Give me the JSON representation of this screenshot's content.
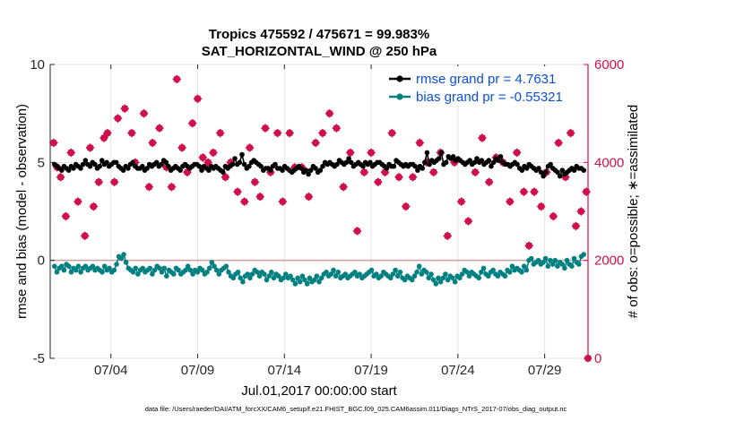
{
  "chart_data": {
    "type": "line",
    "title": "Tropics 475592 / 475671 = 99.983%",
    "subtitle": "SAT_HORIZONTAL_WIND @ 250 hPa",
    "xlabel": "Jul.01,2017 00:00:00 start",
    "ylabel_left": "rmse and bias (model - observation)",
    "ylabel_right": "# of obs: o=possible; ∗=assimilated",
    "x_range_days": [
      0.5,
      31.5
    ],
    "x_tick_days": [
      4,
      9,
      14,
      19,
      24,
      29
    ],
    "x_tick_labels": [
      "07/04",
      "07/09",
      "07/14",
      "07/19",
      "07/24",
      "07/29"
    ],
    "ylim_left": [
      -5,
      10
    ],
    "ylim_right": [
      0,
      6000
    ],
    "y_ticks_left": [
      -5,
      0,
      5,
      10
    ],
    "y_ticks_right": [
      0,
      2000,
      4000,
      6000
    ],
    "grid": true,
    "legend_placement": "top-right",
    "colors": {
      "rmse": "#000000",
      "bias": "#008080",
      "obs": "#d0104c",
      "right_axis": "#d0104c",
      "zero_line": "#c9a0a0",
      "legend_text": "#0b4fd9"
    },
    "series": [
      {
        "name": "rmse grand pr = 4.7631",
        "axis": "left",
        "color": "#000000",
        "values": [
          4.9,
          4.8,
          4.7,
          4.6,
          4.8,
          4.7,
          4.6,
          4.8,
          4.7,
          4.9,
          4.8,
          4.7,
          4.9,
          5.1,
          4.9,
          4.8,
          5.0,
          4.9,
          4.7,
          4.8,
          5.1,
          4.9,
          5.0,
          4.8,
          4.9,
          5.0,
          5.0,
          4.8,
          4.7,
          4.6,
          4.8,
          4.7,
          4.9,
          5.0,
          4.8,
          4.7,
          4.7,
          4.8,
          4.6,
          4.7,
          4.9,
          4.8,
          4.9,
          5.0,
          4.8,
          4.9,
          5.1,
          5.0,
          4.8,
          4.6,
          4.7,
          4.8,
          4.7,
          4.6,
          4.8,
          4.9,
          4.8,
          4.7,
          4.8,
          4.9,
          4.9,
          4.8,
          4.6,
          4.8,
          4.7,
          4.6,
          4.8,
          4.7,
          4.8,
          4.7,
          4.6,
          4.5,
          4.8,
          4.7,
          4.8,
          4.9,
          5.2,
          4.9,
          5.0,
          5.4,
          4.9,
          4.7,
          4.8,
          5.0,
          5.1,
          5.0,
          4.9,
          4.8,
          4.6,
          4.7,
          4.7,
          4.6,
          4.8,
          4.9,
          4.7,
          4.7,
          4.6,
          4.8,
          4.7,
          4.6,
          4.5,
          4.6,
          4.7,
          4.8,
          4.7,
          4.5,
          4.6,
          4.4,
          4.6,
          4.8,
          4.7,
          4.5,
          4.6,
          4.8,
          5.0,
          4.9,
          5.0,
          4.9,
          4.8,
          4.9,
          5.1,
          5.0,
          4.9,
          5.0,
          5.2,
          5.0,
          4.8,
          4.9,
          5.0,
          4.9,
          4.8,
          5.0,
          4.9,
          5.0,
          4.8,
          4.9,
          5.0,
          5.0,
          4.9,
          4.8,
          4.7,
          4.9,
          4.8,
          4.8,
          5.1,
          5.0,
          4.9,
          4.8,
          4.9,
          4.8,
          4.9,
          4.9,
          4.8,
          4.6,
          4.8,
          4.7,
          5.0,
          5.5,
          4.9,
          5.1,
          5.0,
          5.1,
          5.2,
          5.5,
          4.9,
          5.0,
          5.3,
          5.2,
          5.3,
          5.1,
          5.2,
          5.1,
          5.0,
          4.9,
          5.0,
          5.1,
          4.9,
          5.0,
          5.2,
          5.0,
          5.1,
          4.9,
          5.0,
          5.1,
          4.8,
          5.0,
          5.2,
          5.1,
          5.3,
          5.0,
          4.9,
          4.9,
          4.8,
          4.9,
          5.0,
          4.9,
          4.7,
          4.6,
          4.8,
          4.7,
          4.9,
          4.8,
          4.7,
          4.6,
          4.7,
          4.5,
          4.3,
          4.5,
          4.8,
          4.9,
          4.7,
          4.6,
          4.5,
          4.3,
          4.6,
          4.4,
          4.5,
          4.6,
          4.7,
          4.6,
          4.8,
          4.7,
          4.7,
          4.6
        ]
      },
      {
        "name": "bias grand pr = -0.55321",
        "axis": "left",
        "color": "#008080",
        "values": [
          -0.3,
          -0.6,
          -0.4,
          -0.3,
          -0.5,
          -0.2,
          -0.3,
          -0.6,
          -0.4,
          -0.5,
          -0.3,
          -0.6,
          -0.4,
          -0.3,
          -0.5,
          -0.4,
          -0.3,
          -0.5,
          -0.4,
          -0.5,
          -0.6,
          -0.3,
          -0.5,
          -0.4,
          -0.6,
          -0.5,
          -0.2,
          0.2,
          0.1,
          0.3,
          -0.1,
          -0.4,
          -0.5,
          -0.6,
          -0.4,
          -0.7,
          -0.5,
          -0.4,
          -0.6,
          -0.5,
          -0.4,
          -0.7,
          -0.5,
          -0.3,
          -0.4,
          -0.6,
          -0.4,
          -0.8,
          -0.5,
          -0.6,
          -0.7,
          -0.4,
          -0.5,
          -0.7,
          -0.6,
          -0.5,
          -0.3,
          -0.5,
          -0.7,
          -0.5,
          -0.6,
          -0.4,
          -0.5,
          -0.7,
          -0.6,
          -0.4,
          -0.1,
          -0.3,
          -0.5,
          -0.7,
          -0.5,
          -0.4,
          -0.3,
          -0.6,
          -0.8,
          -0.9,
          -0.7,
          -0.6,
          -0.9,
          -1.1,
          -0.8,
          -0.7,
          -0.9,
          -0.7,
          -0.5,
          -0.6,
          -0.8,
          -0.6,
          -0.7,
          -1.0,
          -0.8,
          -0.6,
          -0.9,
          -0.7,
          -0.8,
          -1.0,
          -0.9,
          -0.7,
          -0.9,
          -0.8,
          -1.0,
          -1.2,
          -0.9,
          -1.1,
          -0.8,
          -1.0,
          -1.2,
          -0.9,
          -1.1,
          -1.0,
          -0.8,
          -1.1,
          -0.9,
          -0.7,
          -0.6,
          -0.8,
          -0.7,
          -0.5,
          -0.8,
          -0.6,
          -0.9,
          -0.8,
          -0.7,
          -0.9,
          -0.8,
          -0.7,
          -0.6,
          -0.8,
          -0.7,
          -0.9,
          -0.8,
          -0.7,
          -0.6,
          -0.5,
          -0.8,
          -0.7,
          -0.9,
          -0.8,
          -0.6,
          -0.7,
          -0.8,
          -0.9,
          -0.7,
          -0.5,
          -0.8,
          -0.6,
          -0.9,
          -1.0,
          -0.8,
          -0.9,
          -1.0,
          -0.8,
          -0.6,
          -0.3,
          -0.7,
          -0.5,
          -0.6,
          -0.9,
          -0.7,
          -1.0,
          -1.2,
          -0.9,
          -1.1,
          -0.9,
          -0.7,
          -1.0,
          -0.8,
          -0.9,
          -1.1,
          -0.8,
          -0.9,
          -0.7,
          -0.5,
          -0.6,
          -0.8,
          -0.6,
          -0.7,
          -0.8,
          -0.9,
          -0.6,
          -0.4,
          -0.7,
          -0.8,
          -0.6,
          -0.5,
          -0.7,
          -0.8,
          -0.6,
          -0.7,
          -0.8,
          -0.5,
          -0.6,
          -0.3,
          -0.5,
          -0.4,
          -0.5,
          -0.6,
          -0.3,
          -0.5,
          0.0,
          0.1,
          -0.2,
          -0.1,
          0.0,
          -0.2,
          -0.1,
          0.1,
          -0.3,
          0.0,
          -0.2,
          0.0,
          -0.3,
          -0.1,
          -0.2,
          -0.4,
          0.0,
          -0.2,
          -0.3,
          0.1,
          -0.1,
          -0.2,
          0.2,
          0.3
        ]
      },
      {
        "name": "obs",
        "axis": "right",
        "color": "#d0104c",
        "x": [
          0.7,
          0.9,
          1.1,
          1.4,
          1.7,
          2.1,
          2.5,
          2.8,
          3.0,
          3.3,
          3.6,
          3.8,
          4.2,
          4.4,
          4.8,
          5.2,
          5.4,
          5.9,
          6.2,
          6.4,
          6.8,
          7.2,
          7.5,
          7.8,
          8.1,
          8.4,
          8.7,
          9.0,
          9.3,
          9.6,
          9.9,
          10.3,
          10.6,
          10.9,
          11.3,
          11.7,
          12.0,
          12.3,
          12.6,
          12.9,
          13.2,
          13.6,
          13.9,
          14.3,
          14.6,
          15.0,
          15.4,
          15.8,
          16.2,
          16.6,
          17.0,
          17.4,
          17.8,
          18.2,
          18.6,
          19.0,
          19.4,
          19.8,
          20.2,
          20.6,
          21.0,
          21.4,
          21.8,
          22.2,
          22.6,
          23.0,
          23.4,
          23.8,
          24.2,
          24.6,
          25.0,
          25.4,
          25.8,
          26.2,
          26.6,
          27.0,
          27.4,
          27.8,
          28.1,
          28.4,
          28.8,
          29.1,
          29.5,
          29.8,
          30.2,
          30.5,
          30.8,
          31.1,
          31.4
        ],
        "values": [
          4400,
          3900,
          3700,
          2900,
          4200,
          3200,
          2500,
          4300,
          3100,
          3600,
          4500,
          4600,
          3600,
          4900,
          5100,
          4600,
          4000,
          5000,
          3500,
          4400,
          4700,
          3900,
          3500,
          5700,
          4300,
          3800,
          4800,
          5300,
          4100,
          4000,
          4200,
          4600,
          3700,
          4000,
          3400,
          3200,
          4300,
          3600,
          3300,
          4700,
          3800,
          4600,
          3200,
          4600,
          3900,
          3900,
          3300,
          4400,
          4600,
          5000,
          4700,
          3500,
          4200,
          2600,
          3800,
          4200,
          3600,
          3800,
          4600,
          3700,
          3100,
          3700,
          4400,
          4000,
          3800,
          4200,
          2500,
          4000,
          3200,
          2800,
          3800,
          4500,
          3600,
          4100,
          4000,
          3200,
          4200,
          3400,
          2300,
          3400,
          3100,
          3800,
          2900,
          4400,
          3700,
          4600,
          2700,
          3000,
          3400
        ]
      }
    ],
    "legend": [
      "rmse grand pr = 4.7631",
      "bias grand pr = -0.55321"
    ],
    "footnote": "data file: /Users/raeder/DAI/ATM_forcXX/CAM6_setup/f.e21.FHIST_BGC.f09_025.CAM6assim.011/Diags_NTrS_2017-07/obs_diag_output.nc",
    "extra_marker": {
      "x": 31.5,
      "value": 0
    }
  }
}
